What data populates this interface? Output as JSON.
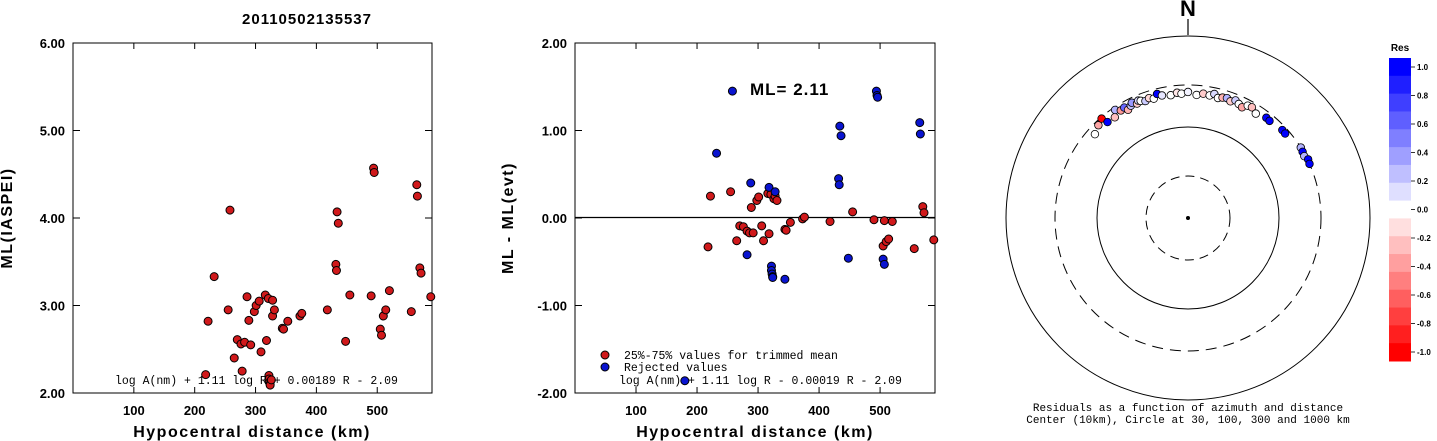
{
  "title": "20110502135537",
  "chart_data": [
    {
      "type": "scatter",
      "id": "ml_vs_distance",
      "xlabel": "Hypocentral distance (km)",
      "ylabel": "ML(IASPEI)",
      "xlim": [
        0,
        590
      ],
      "ylim": [
        2.0,
        6.0
      ],
      "xticks": [
        "100",
        "200",
        "300",
        "400",
        "500"
      ],
      "yticks": [
        "2.00",
        "3.00",
        "4.00",
        "5.00",
        "6.00"
      ],
      "equation": "log A(nm) + 1.11 log R + 0.00189 R - 2.09",
      "series": [
        {
          "color": "#d0191b",
          "points": [
            [
              218,
              2.21
            ],
            [
              222,
              2.82
            ],
            [
              232,
              3.33
            ],
            [
              258,
              4.09
            ],
            [
              255,
              2.95
            ],
            [
              265,
              2.4
            ],
            [
              270,
              2.61
            ],
            [
              276,
              2.56
            ],
            [
              278,
              2.25
            ],
            [
              282,
              2.58
            ],
            [
              286,
              3.1
            ],
            [
              289,
              2.83
            ],
            [
              292,
              2.55
            ],
            [
              298,
              2.93
            ],
            [
              301,
              3.0
            ],
            [
              306,
              3.05
            ],
            [
              309,
              2.47
            ],
            [
              316,
              3.12
            ],
            [
              318,
              2.6
            ],
            [
              321,
              3.08
            ],
            [
              322,
              2.2
            ],
            [
              322,
              2.16
            ],
            [
              323,
              2.12
            ],
            [
              324,
              2.1
            ],
            [
              324,
              2.09
            ],
            [
              326,
              2.15
            ],
            [
              328,
              2.88
            ],
            [
              328,
              3.06
            ],
            [
              331,
              2.95
            ],
            [
              344,
              2.74
            ],
            [
              346,
              2.73
            ],
            [
              353,
              2.82
            ],
            [
              373,
              2.88
            ],
            [
              376,
              2.91
            ],
            [
              418,
              2.95
            ],
            [
              432,
              3.47
            ],
            [
              433,
              3.4
            ],
            [
              434,
              4.07
            ],
            [
              436,
              3.94
            ],
            [
              448,
              2.59
            ],
            [
              455,
              3.12
            ],
            [
              490,
              3.11
            ],
            [
              494,
              4.57
            ],
            [
              495,
              4.52
            ],
            [
              505,
              2.73
            ],
            [
              507,
              2.66
            ],
            [
              510,
              2.88
            ],
            [
              514,
              2.95
            ],
            [
              520,
              3.17
            ],
            [
              556,
              2.93
            ],
            [
              565,
              4.38
            ],
            [
              566,
              4.25
            ],
            [
              570,
              3.43
            ],
            [
              572,
              3.37
            ],
            [
              588,
              3.1
            ]
          ]
        }
      ]
    },
    {
      "type": "scatter",
      "id": "residual_vs_distance",
      "xlabel": "Hypocentral distance (km)",
      "ylabel": "ML - ML(evt)",
      "xlim": [
        0,
        590
      ],
      "ylim": [
        -2.0,
        2.0
      ],
      "xticks": [
        "100",
        "200",
        "300",
        "400",
        "500"
      ],
      "yticks": [
        "-2.00",
        "-1.00",
        "0.00",
        "1.00",
        "2.00"
      ],
      "annotation": "ML= 2.11",
      "equation": "log A(nm) + 1.11 log R - 0.00019 R - 2.09",
      "legend": [
        "25%-75% values for trimmed mean",
        "Rejected values"
      ],
      "series": [
        {
          "name": "25%-75% values for trimmed mean",
          "color": "#d0191b",
          "points": [
            [
              218,
              -0.33
            ],
            [
              222,
              0.25
            ],
            [
              255,
              0.3
            ],
            [
              265,
              -0.26
            ],
            [
              270,
              -0.09
            ],
            [
              276,
              -0.1
            ],
            [
              282,
              -0.15
            ],
            [
              286,
              -0.17
            ],
            [
              289,
              0.12
            ],
            [
              292,
              -0.17
            ],
            [
              298,
              0.2
            ],
            [
              301,
              0.24
            ],
            [
              306,
              -0.09
            ],
            [
              309,
              -0.26
            ],
            [
              316,
              0.28
            ],
            [
              318,
              -0.18
            ],
            [
              321,
              0.27
            ],
            [
              326,
              0.22
            ],
            [
              328,
              0.25
            ],
            [
              331,
              0.2
            ],
            [
              344,
              -0.13
            ],
            [
              346,
              -0.14
            ],
            [
              353,
              -0.05
            ],
            [
              373,
              -0.01
            ],
            [
              376,
              0.01
            ],
            [
              418,
              -0.04
            ],
            [
              455,
              0.07
            ],
            [
              490,
              -0.02
            ],
            [
              505,
              -0.32
            ],
            [
              507,
              -0.03
            ],
            [
              510,
              -0.27
            ],
            [
              514,
              -0.24
            ],
            [
              520,
              -0.04
            ],
            [
              556,
              -0.35
            ],
            [
              570,
              0.13
            ],
            [
              572,
              0.06
            ],
            [
              588,
              -0.25
            ]
          ]
        },
        {
          "name": "Rejected values",
          "color": "#0a14d0",
          "points": [
            [
              232,
              0.74
            ],
            [
              258,
              1.45
            ],
            [
              282,
              -0.42
            ],
            [
              288,
              0.4
            ],
            [
              318,
              0.35
            ],
            [
              322,
              -0.55
            ],
            [
              322,
              -0.6
            ],
            [
              323,
              -0.64
            ],
            [
              324,
              -0.67
            ],
            [
              324,
              -0.68
            ],
            [
              328,
              0.3
            ],
            [
              344,
              -0.7
            ],
            [
              432,
              0.45
            ],
            [
              433,
              0.38
            ],
            [
              434,
              1.05
            ],
            [
              436,
              0.94
            ],
            [
              448,
              -0.46
            ],
            [
              494,
              1.45
            ],
            [
              495,
              1.4
            ],
            [
              496,
              1.38
            ],
            [
              505,
              -0.47
            ],
            [
              507,
              -0.53
            ],
            [
              565,
              1.09
            ],
            [
              566,
              0.96
            ],
            [
              180,
              -1.86
            ]
          ]
        }
      ]
    }
  ],
  "polar": {
    "north_label": "N",
    "caption_line1": "Residuals as a function of azimuth and distance",
    "caption_line2": "Center (10km), Circle at 30, 100, 300 and 1000 km",
    "colorbar_title": "Res",
    "colorbar_ticks": [
      "1.0",
      "0.8",
      "0.6",
      "0.4",
      "0.2",
      "0.0",
      "-0.2",
      "-0.4",
      "-0.6",
      "-0.8",
      "-1.0"
    ],
    "colorbar_colors": [
      "#0000ff",
      "#1f1fff",
      "#3f3fff",
      "#5f5fff",
      "#7f7fff",
      "#9f9fff",
      "#bfbfff",
      "#dfdfff",
      "#ffffff",
      "#ffdfdf",
      "#ffbfbf",
      "#ff9f9f",
      "#ff7f7f",
      "#ff5f5f",
      "#ff3f3f",
      "#ff1f1f",
      "#ff0000"
    ],
    "stations": [
      {
        "az": -48,
        "dist": 245,
        "res": 0.0
      },
      {
        "az": -44,
        "dist": 270,
        "res": -0.35
      },
      {
        "az": -41,
        "dist": 290,
        "res": -1.0
      },
      {
        "az": -40,
        "dist": 245,
        "res": 1.0
      },
      {
        "az": -36,
        "dist": 240,
        "res": -0.25
      },
      {
        "az": -34,
        "dist": 280,
        "res": 0.3
      },
      {
        "az": -32,
        "dist": 255,
        "res": -0.4
      },
      {
        "az": -30,
        "dist": 260,
        "res": 0.6
      },
      {
        "az": -29,
        "dist": 235,
        "res": -0.3
      },
      {
        "az": -27,
        "dist": 250,
        "res": 0.25
      },
      {
        "az": -26,
        "dist": 265,
        "res": 0.4
      },
      {
        "az": -24,
        "dist": 245,
        "res": -0.2
      },
      {
        "az": -23,
        "dist": 260,
        "res": 0.15
      },
      {
        "az": -22,
        "dist": 252,
        "res": 0.0
      },
      {
        "az": -20,
        "dist": 240,
        "res": 0.2
      },
      {
        "az": -18,
        "dist": 250,
        "res": -0.15
      },
      {
        "az": -16,
        "dist": 238,
        "res": 0.0
      },
      {
        "az": -14,
        "dist": 262,
        "res": 1.0
      },
      {
        "az": -12,
        "dist": 245,
        "res": 0.1
      },
      {
        "az": -8,
        "dist": 237,
        "res": 0.0
      },
      {
        "az": -5,
        "dist": 248,
        "res": -0.1
      },
      {
        "az": -3,
        "dist": 240,
        "res": 0.0
      },
      {
        "az": 0,
        "dist": 250,
        "res": 0.05
      },
      {
        "az": 4,
        "dist": 233,
        "res": 0.0
      },
      {
        "az": 7,
        "dist": 245,
        "res": -0.2
      },
      {
        "az": 10,
        "dist": 240,
        "res": 0.0
      },
      {
        "az": 12,
        "dist": 255,
        "res": 0.15
      },
      {
        "az": 14,
        "dist": 235,
        "res": 0.0
      },
      {
        "az": 16,
        "dist": 245,
        "res": -0.3
      },
      {
        "az": 18,
        "dist": 250,
        "res": 0.3
      },
      {
        "az": 20,
        "dist": 238,
        "res": -0.2
      },
      {
        "az": 22,
        "dist": 255,
        "res": 0.2
      },
      {
        "az": 24,
        "dist": 242,
        "res": 0.0
      },
      {
        "az": 26,
        "dist": 232,
        "res": -0.35
      },
      {
        "az": 28,
        "dist": 258,
        "res": 0.0
      },
      {
        "az": 30,
        "dist": 262,
        "res": -0.25
      },
      {
        "az": 33,
        "dist": 240,
        "res": 0.0
      },
      {
        "az": 38,
        "dist": 258,
        "res": 1.0
      },
      {
        "az": 40,
        "dist": 255,
        "res": 1.0
      },
      {
        "az": 47,
        "dist": 270,
        "res": 1.0
      },
      {
        "az": 49,
        "dist": 268,
        "res": 1.0
      },
      {
        "az": 58,
        "dist": 300,
        "res": 0.3
      },
      {
        "az": 60,
        "dist": 295,
        "res": 1.0
      },
      {
        "az": 62,
        "dist": 290,
        "res": 0.3
      },
      {
        "az": 64,
        "dist": 305,
        "res": 1.0
      },
      {
        "az": 66,
        "dist": 300,
        "res": 1.0
      }
    ]
  }
}
